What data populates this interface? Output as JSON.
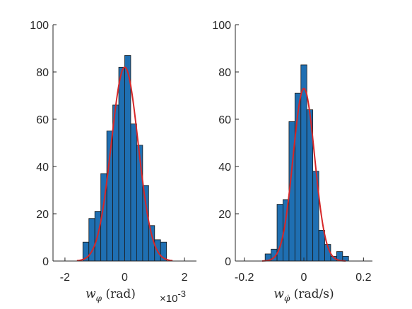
{
  "chart_data": [
    {
      "type": "bar",
      "subtype": "histogram-with-fit",
      "xlabel": "w_φ (rad)",
      "x_exponent_label": "×10-3",
      "xlim": [
        -2.4,
        2.4
      ],
      "ylim": [
        0,
        100
      ],
      "xticks": [
        -2,
        0,
        2
      ],
      "yticks": [
        0,
        20,
        40,
        60,
        80,
        100
      ],
      "bin_width": 0.2,
      "bins": [
        {
          "x": -1.3,
          "y": 8
        },
        {
          "x": -1.1,
          "y": 18
        },
        {
          "x": -0.9,
          "y": 21
        },
        {
          "x": -0.7,
          "y": 37
        },
        {
          "x": -0.5,
          "y": 55
        },
        {
          "x": -0.3,
          "y": 66
        },
        {
          "x": -0.1,
          "y": 82
        },
        {
          "x": 0.1,
          "y": 87
        },
        {
          "x": 0.3,
          "y": 58
        },
        {
          "x": 0.5,
          "y": 49
        },
        {
          "x": 0.7,
          "y": 32
        },
        {
          "x": 0.9,
          "y": 15
        },
        {
          "x": 1.1,
          "y": 9
        },
        {
          "x": 1.3,
          "y": 8
        }
      ],
      "fit": {
        "kind": "normal",
        "mean": 0.0,
        "std": 0.45,
        "peak": 82,
        "x_range": [
          -1.6,
          1.6
        ]
      },
      "colors": {
        "bar": "#1f6fb2",
        "bar_edge": "#1a1a1a",
        "fit": "#d62728"
      },
      "grid": false,
      "legend": "none"
    },
    {
      "type": "bar",
      "subtype": "histogram-with-fit",
      "xlabel": "w_φ̇ (rad/s)",
      "xlim": [
        -0.23,
        0.23
      ],
      "ylim": [
        0,
        100
      ],
      "xticks": [
        -0.2,
        0,
        0.2
      ],
      "yticks": [
        0,
        20,
        40,
        60,
        80,
        100
      ],
      "bin_width": 0.02,
      "bins": [
        {
          "x": -0.12,
          "y": 3
        },
        {
          "x": -0.1,
          "y": 5
        },
        {
          "x": -0.08,
          "y": 24
        },
        {
          "x": -0.06,
          "y": 26
        },
        {
          "x": -0.04,
          "y": 59
        },
        {
          "x": -0.02,
          "y": 71
        },
        {
          "x": 0.0,
          "y": 83
        },
        {
          "x": 0.02,
          "y": 64
        },
        {
          "x": 0.04,
          "y": 38
        },
        {
          "x": 0.06,
          "y": 13
        },
        {
          "x": 0.08,
          "y": 7
        },
        {
          "x": 0.1,
          "y": 2
        },
        {
          "x": 0.12,
          "y": 4
        },
        {
          "x": 0.14,
          "y": 2
        }
      ],
      "fit": {
        "kind": "normal",
        "mean": 0.0,
        "std": 0.036,
        "peak": 73,
        "x_range": [
          -0.14,
          0.14
        ]
      },
      "colors": {
        "bar": "#1f6fb2",
        "bar_edge": "#1a1a1a",
        "fit": "#d62728"
      },
      "grid": false,
      "legend": "none"
    }
  ]
}
